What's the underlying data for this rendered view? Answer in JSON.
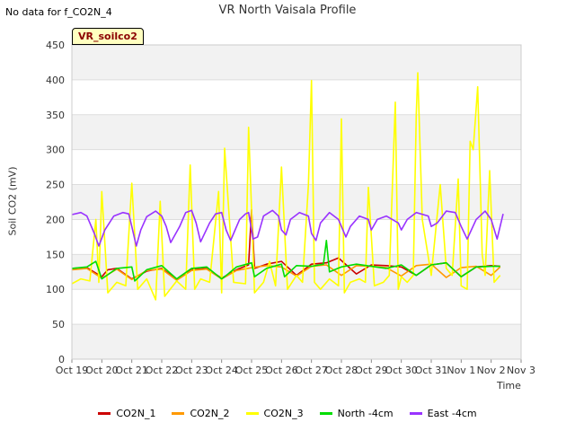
{
  "nodata_text": "No data for f_CO2N_4",
  "badge_text": "VR_soilco2",
  "chart_data": {
    "type": "line",
    "title": "VR North Vaisala Profile",
    "xlabel": "Time",
    "ylabel": "Soil CO2 (mV)",
    "ylim": [
      0,
      450
    ],
    "yticks": [
      0,
      50,
      100,
      150,
      200,
      250,
      300,
      350,
      400,
      450
    ],
    "xlim": [
      0,
      15
    ],
    "xticks": [
      "Oct 19",
      "Oct 20",
      "Oct 21",
      "Oct 22",
      "Oct 23",
      "Oct 24",
      "Oct 25",
      "Oct 26",
      "Oct 27",
      "Oct 28",
      "Oct 29",
      "Oct 30",
      "Oct 31",
      "Nov 1",
      "Nov 2",
      "Nov 3"
    ],
    "legend_position": "bottom",
    "series": [
      {
        "name": "CO2N_1",
        "color": "#cc0000",
        "x": [
          0,
          0.5,
          1,
          1.2,
          1.5,
          2,
          2.5,
          3,
          3.5,
          4,
          4.5,
          5,
          5.5,
          5.9,
          6.0,
          6.1,
          6.5,
          7,
          7.5,
          8,
          8.5,
          8.9,
          9.5,
          10,
          10.5,
          11,
          11.5,
          12,
          12.5,
          13,
          13.5,
          14,
          14.3
        ],
        "y": [
          130,
          131,
          118,
          128,
          130,
          115,
          126,
          130,
          114,
          128,
          130,
          116,
          128,
          135,
          214,
          130,
          136,
          140,
          120,
          136,
          138,
          145,
          122,
          135,
          134,
          132,
          120,
          135,
          138,
          118,
          132,
          134,
          133
        ]
      },
      {
        "name": "CO2N_2",
        "color": "#ff9900",
        "x": [
          0,
          0.5,
          1,
          1.5,
          2,
          2.5,
          3,
          3.5,
          4,
          4.5,
          5,
          5.5,
          6,
          6.5,
          7,
          7.5,
          8,
          8.5,
          9,
          9.5,
          10,
          10.5,
          11,
          11.5,
          12,
          12.5,
          13,
          13.5,
          14,
          14.3
        ],
        "y": [
          128,
          130,
          116,
          129,
          114,
          127,
          129,
          113,
          127,
          129,
          115,
          127,
          131,
          134,
          132,
          119,
          133,
          135,
          120,
          134,
          133,
          131,
          119,
          134,
          136,
          117,
          131,
          133,
          120,
          132
        ]
      },
      {
        "name": "CO2N_3",
        "color": "#ffff00",
        "x": [
          0,
          0.3,
          0.6,
          0.8,
          0.9,
          1.0,
          1.2,
          1.5,
          1.8,
          2.0,
          2.2,
          2.5,
          2.8,
          2.95,
          3.1,
          3.5,
          3.8,
          3.95,
          4.1,
          4.3,
          4.6,
          4.9,
          5.0,
          5.1,
          5.4,
          5.8,
          5.9,
          6.1,
          6.4,
          6.6,
          6.8,
          7.0,
          7.2,
          7.5,
          7.7,
          7.9,
          8.0,
          8.1,
          8.3,
          8.6,
          8.9,
          9.0,
          9.1,
          9.3,
          9.6,
          9.8,
          9.9,
          10.1,
          10.4,
          10.6,
          10.8,
          10.9,
          11.0,
          11.2,
          11.4,
          11.5,
          11.55,
          11.7,
          12.0,
          12.3,
          12.5,
          12.7,
          12.9,
          13.0,
          13.2,
          13.3,
          13.4,
          13.55,
          13.7,
          13.8,
          13.95,
          14.1,
          14.3
        ],
        "y": [
          108,
          115,
          112,
          200,
          110,
          240,
          95,
          110,
          105,
          252,
          100,
          115,
          85,
          226,
          90,
          112,
          100,
          278,
          100,
          115,
          110,
          240,
          95,
          302,
          110,
          108,
          332,
          95,
          110,
          140,
          105,
          275,
          100,
          120,
          110,
          250,
          399,
          110,
          100,
          115,
          105,
          344,
          95,
          110,
          115,
          110,
          246,
          105,
          110,
          120,
          368,
          100,
          118,
          110,
          120,
          350,
          410,
          200,
          120,
          250,
          130,
          120,
          258,
          105,
          100,
          312,
          300,
          390,
          150,
          120,
          270,
          110,
          120
        ]
      },
      {
        "name": "North -4cm",
        "color": "#00dd00",
        "x": [
          0,
          0.5,
          0.8,
          1,
          1.5,
          2,
          2.1,
          2.5,
          3,
          3.5,
          3.6,
          4,
          4.5,
          5,
          5.1,
          5.5,
          6,
          6.1,
          6.5,
          7,
          7.1,
          7.5,
          8,
          8.4,
          8.5,
          8.6,
          9,
          9.5,
          10,
          10.5,
          11,
          11.5,
          12,
          12.5,
          13,
          13.5,
          14,
          14.3
        ],
        "y": [
          130,
          132,
          140,
          115,
          130,
          132,
          112,
          128,
          134,
          115,
          118,
          130,
          132,
          115,
          118,
          132,
          138,
          118,
          130,
          136,
          118,
          134,
          133,
          136,
          170,
          125,
          132,
          136,
          133,
          130,
          135,
          120,
          135,
          138,
          118,
          132,
          133,
          133
        ]
      },
      {
        "name": "East -4cm",
        "color": "#9933ff",
        "x": [
          0,
          0.3,
          0.5,
          0.75,
          0.9,
          1.1,
          1.4,
          1.7,
          1.9,
          2.0,
          2.15,
          2.3,
          2.5,
          2.8,
          3.0,
          3.15,
          3.3,
          3.6,
          3.8,
          4.0,
          4.15,
          4.3,
          4.6,
          4.8,
          5.0,
          5.15,
          5.3,
          5.6,
          5.8,
          5.9,
          6.05,
          6.2,
          6.4,
          6.7,
          6.9,
          7.0,
          7.15,
          7.3,
          7.6,
          7.9,
          8.0,
          8.15,
          8.3,
          8.6,
          8.9,
          9.0,
          9.15,
          9.3,
          9.6,
          9.9,
          10.0,
          10.2,
          10.5,
          10.9,
          11.0,
          11.2,
          11.5,
          11.9,
          12.0,
          12.2,
          12.5,
          12.8,
          13.0,
          13.2,
          13.5,
          13.8,
          14.0,
          14.2,
          14.4
        ],
        "y": [
          207,
          210,
          205,
          180,
          162,
          185,
          205,
          210,
          208,
          190,
          162,
          185,
          204,
          212,
          205,
          190,
          167,
          190,
          210,
          213,
          195,
          168,
          195,
          208,
          210,
          185,
          170,
          200,
          208,
          210,
          172,
          175,
          205,
          213,
          205,
          185,
          178,
          200,
          210,
          205,
          180,
          170,
          195,
          210,
          200,
          190,
          175,
          190,
          205,
          200,
          185,
          200,
          205,
          195,
          185,
          200,
          210,
          205,
          190,
          195,
          212,
          210,
          190,
          172,
          200,
          212,
          200,
          172,
          208
        ]
      }
    ]
  }
}
